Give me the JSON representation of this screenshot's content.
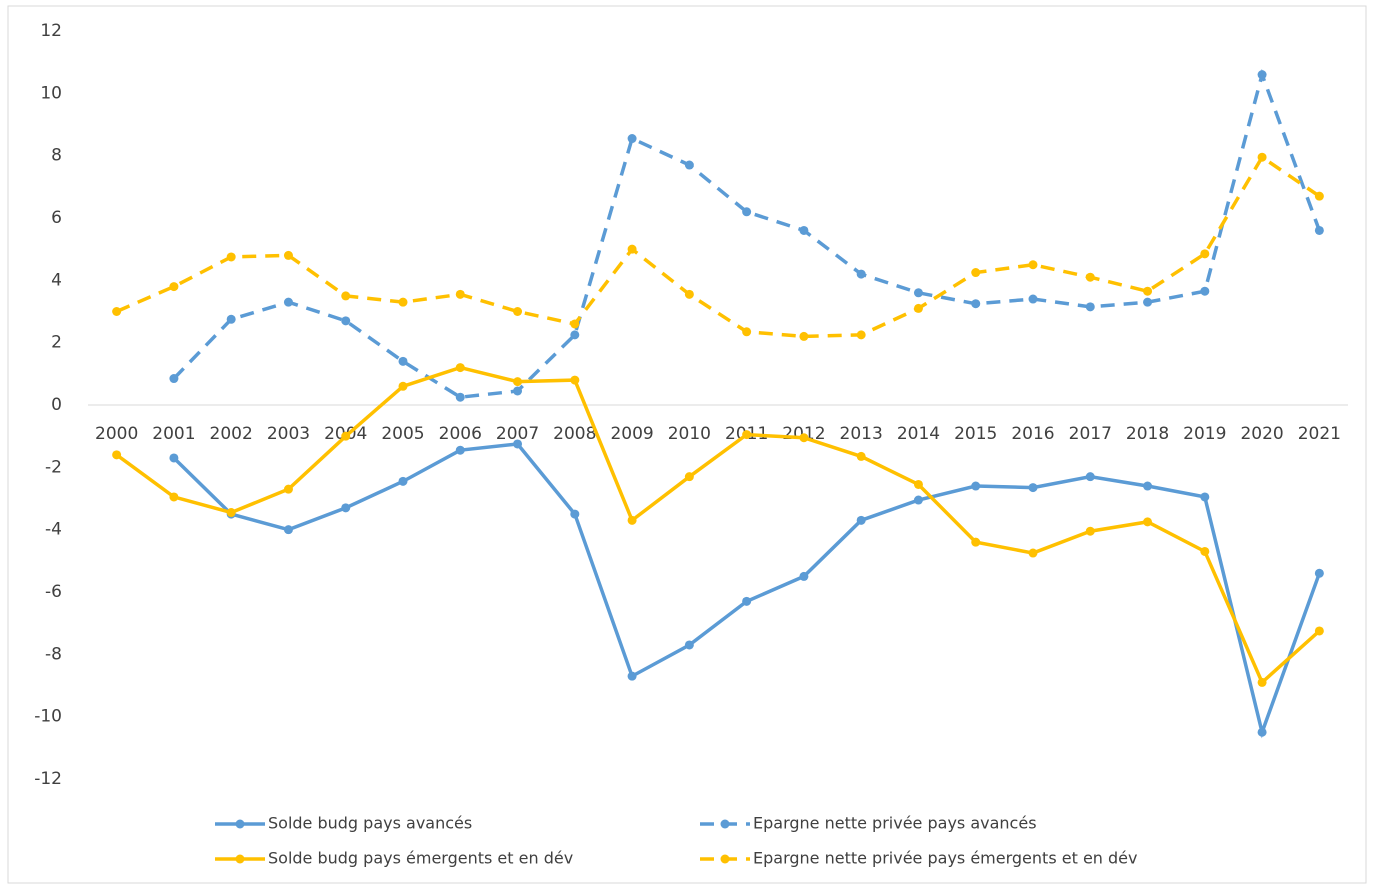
{
  "chart_data": {
    "type": "line",
    "categories": [
      "2000",
      "2001",
      "2002",
      "2003",
      "2004",
      "2005",
      "2006",
      "2007",
      "2008",
      "2009",
      "2010",
      "2011",
      "2012",
      "2013",
      "2014",
      "2015",
      "2016",
      "2017",
      "2018",
      "2019",
      "2020",
      "2021"
    ],
    "series": [
      {
        "name": "Solde budg pays avancés",
        "color": "#5b9bd5",
        "line_style": "solid",
        "values": [
          null,
          -1.7,
          -3.5,
          -4.0,
          -3.3,
          -2.45,
          -1.45,
          -1.25,
          -3.5,
          -8.7,
          -7.7,
          -6.3,
          -5.5,
          -3.7,
          -3.05,
          -2.6,
          -2.65,
          -2.3,
          -2.6,
          -2.95,
          -10.5,
          -5.4
        ]
      },
      {
        "name": "Epargne nette privée pays avancés",
        "color": "#5b9bd5",
        "line_style": "dashed",
        "values": [
          null,
          0.85,
          2.75,
          3.3,
          2.7,
          1.4,
          0.25,
          0.45,
          2.25,
          8.55,
          7.7,
          6.2,
          5.6,
          4.2,
          3.6,
          3.25,
          3.4,
          3.15,
          3.3,
          3.65,
          10.6,
          5.6
        ]
      },
      {
        "name": "Solde budg pays émergents et en dév",
        "color": "#ffc000",
        "line_style": "solid",
        "values": [
          -1.6,
          -2.95,
          -3.45,
          -2.7,
          -1.0,
          0.6,
          1.2,
          0.75,
          0.8,
          -3.7,
          -2.3,
          -0.95,
          -1.05,
          -1.65,
          -2.55,
          -4.4,
          -4.75,
          -4.05,
          -3.75,
          -4.7,
          -8.9,
          -7.25
        ]
      },
      {
        "name": "Epargne nette privée pays émergents et en dév",
        "color": "#ffc000",
        "line_style": "dashed",
        "values": [
          3.0,
          3.8,
          4.75,
          4.8,
          3.5,
          3.3,
          3.55,
          3.0,
          2.6,
          5.0,
          3.55,
          2.35,
          2.2,
          2.25,
          3.1,
          4.25,
          4.5,
          4.1,
          3.65,
          4.85,
          7.95,
          6.7
        ]
      }
    ],
    "ylim": [
      -12,
      12
    ],
    "yticks": [
      12,
      10,
      8,
      6,
      4,
      2,
      0,
      -2,
      -4,
      -6,
      -8,
      -10,
      -12
    ],
    "grid": false,
    "legend": "bottom"
  }
}
